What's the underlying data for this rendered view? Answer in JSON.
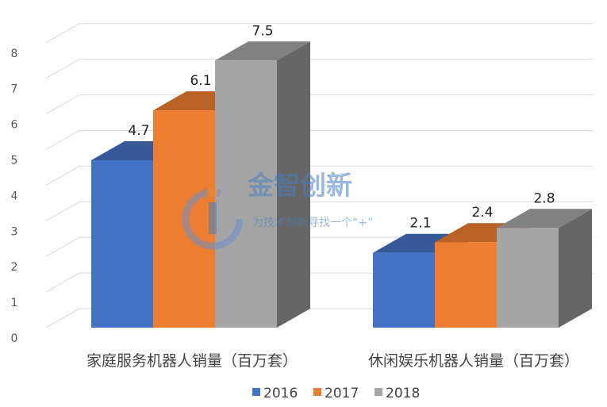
{
  "chart_data": {
    "type": "bar",
    "categories": [
      "家庭服务机器人销量（百万套）",
      "休闲娱乐机器人销量（百万套）"
    ],
    "series": [
      {
        "name": "2016",
        "values": [
          4.7,
          2.1
        ],
        "color": "#4472c4"
      },
      {
        "name": "2017",
        "values": [
          6.1,
          2.4
        ],
        "color": "#ed7d31"
      },
      {
        "name": "2018",
        "values": [
          7.5,
          2.8
        ],
        "color": "#a5a5a5"
      }
    ],
    "y_ticks": [
      "0",
      "1",
      "2",
      "3",
      "4",
      "5",
      "6",
      "7",
      "8"
    ],
    "ylim": [
      0,
      8
    ],
    "data_labels": [
      [
        "4.7",
        "2.1"
      ],
      [
        "6.1",
        "2.4"
      ],
      [
        "7.5",
        "2.8"
      ]
    ],
    "legend_position": "bottom",
    "grid": true,
    "style": "3d-clustered-column"
  },
  "watermark": {
    "main": "金智创新",
    "sub": "为技术创新寻找一个“+”"
  }
}
